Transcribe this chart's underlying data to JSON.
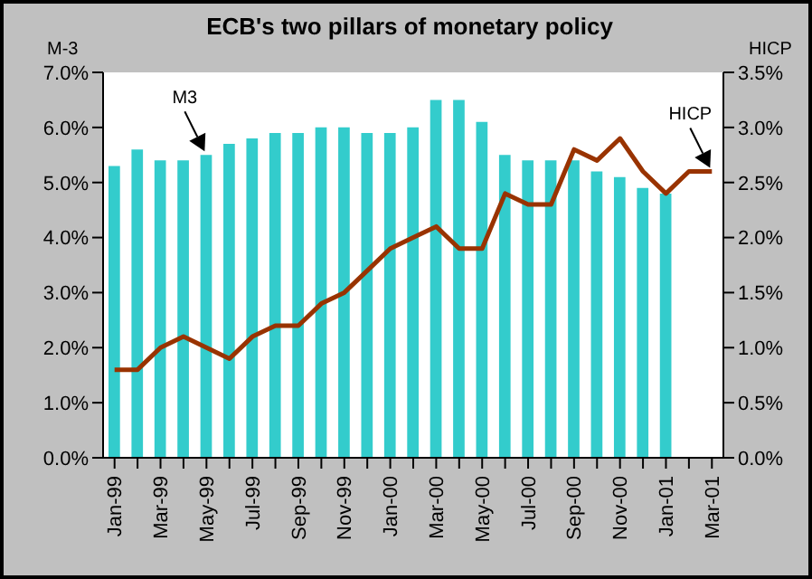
{
  "chart_data": {
    "type": "bar",
    "title": "ECB's two pillars of monetary policy",
    "ylabel": "M-3",
    "y2label": "HICP",
    "categories": [
      "Jan-99",
      null,
      "Mar-99",
      null,
      "May-99",
      null,
      "Jul-99",
      null,
      "Sep-99",
      null,
      "Nov-99",
      null,
      "Jan-00",
      null,
      "Mar-00",
      null,
      "May-00",
      null,
      "Jul-00",
      null,
      "Sep-00",
      null,
      "Nov-00",
      null,
      "Jan-01",
      null,
      "Mar-01"
    ],
    "series": [
      {
        "name": "M3",
        "color": "#33cccc",
        "values": [
          5.3,
          5.6,
          5.4,
          5.4,
          5.5,
          5.7,
          5.8,
          5.9,
          5.9,
          6.0,
          6.0,
          5.9,
          5.9,
          6.0,
          6.5,
          6.5,
          6.1,
          5.5,
          5.4,
          5.4,
          5.4,
          5.2,
          5.1,
          4.9,
          4.8,
          null,
          null
        ]
      },
      {
        "name": "HICP",
        "type": "line",
        "axis": "y2",
        "color": "#993300",
        "values": [
          0.8,
          0.8,
          1.0,
          1.1,
          1.0,
          0.9,
          1.1,
          1.2,
          1.2,
          1.4,
          1.5,
          1.7,
          1.9,
          2.0,
          2.1,
          1.9,
          1.9,
          2.4,
          2.3,
          2.3,
          2.8,
          2.7,
          2.9,
          2.6,
          2.4,
          2.6,
          2.6
        ]
      }
    ],
    "ylim": [
      0,
      7
    ],
    "yticks": [
      {
        "value": 0,
        "label": "0.0%"
      },
      {
        "value": 1,
        "label": "1.0%"
      },
      {
        "value": 2,
        "label": "2.0%"
      },
      {
        "value": 3,
        "label": "3.0%"
      },
      {
        "value": 4,
        "label": "4.0%"
      },
      {
        "value": 5,
        "label": "5.0%"
      },
      {
        "value": 6,
        "label": "6.0%"
      },
      {
        "value": 7,
        "label": "7.0%"
      }
    ],
    "y2lim": [
      0,
      3.5
    ],
    "y2ticks": [
      {
        "value": 0,
        "label": "0.0%"
      },
      {
        "value": 0.5,
        "label": "0.5%"
      },
      {
        "value": 1,
        "label": "1.0%"
      },
      {
        "value": 1.5,
        "label": "1.5%"
      },
      {
        "value": 2,
        "label": "2.0%"
      },
      {
        "value": 2.5,
        "label": "2.5%"
      },
      {
        "value": 3,
        "label": "3.0%"
      },
      {
        "value": 3.5,
        "label": "3.5%"
      }
    ],
    "grid": false,
    "legend": false,
    "marker": "none",
    "line_style": "solid"
  }
}
